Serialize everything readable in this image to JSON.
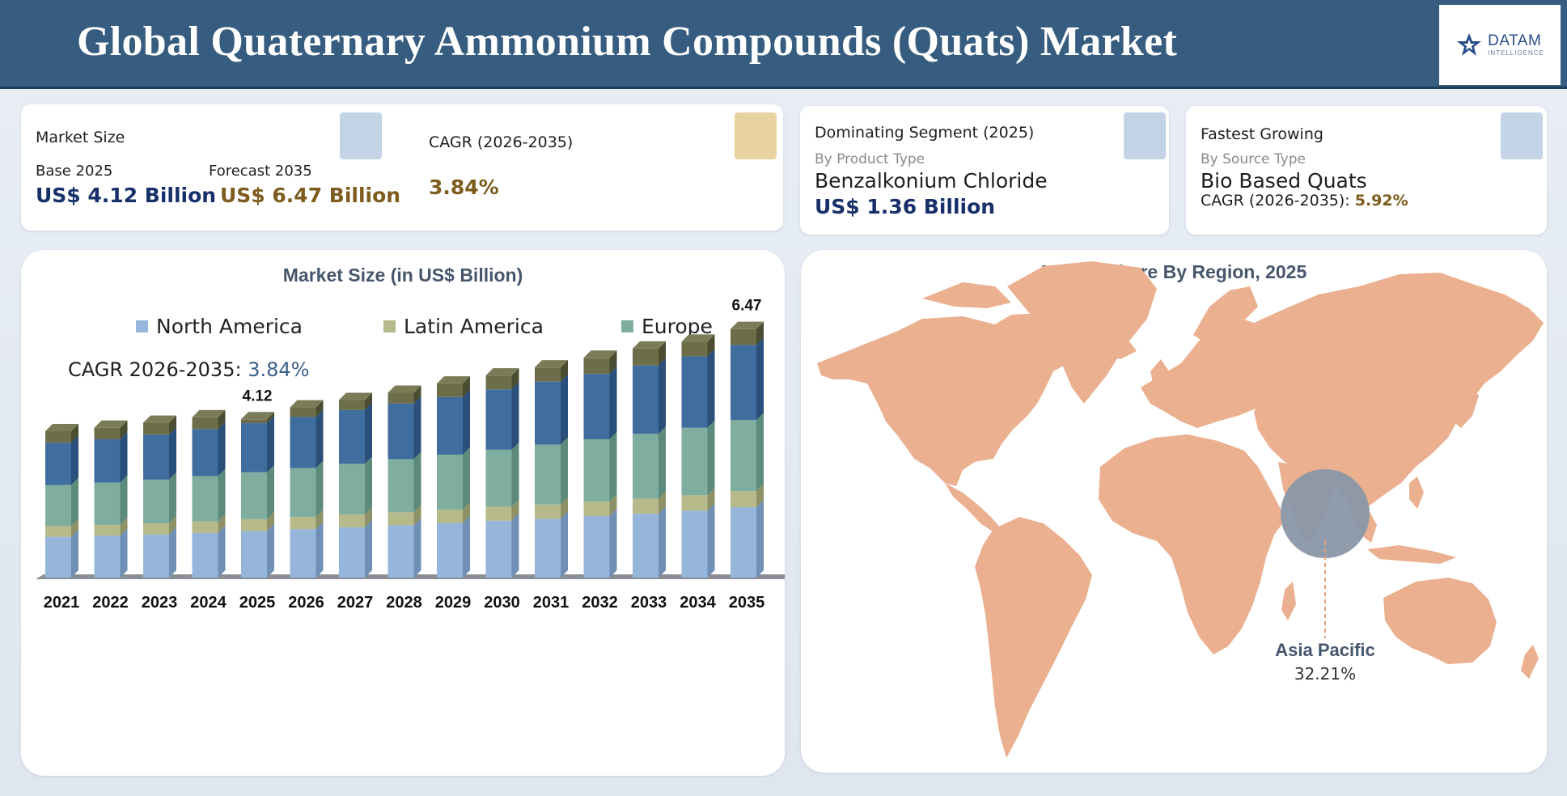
{
  "header": {
    "title": "Global Quaternary Ammonium Compounds (Quats) Market",
    "logo_main": "DATAM",
    "logo_sub": "INTELLIGENCE"
  },
  "kpi": {
    "market_size": {
      "title": "Market Size",
      "base_label": "Base 2025",
      "base_value": "US$ 4.12 Billion",
      "forecast_label": "Forecast 2035",
      "forecast_value": "US$ 6.47 Billion"
    },
    "cagr": {
      "title": "CAGR (2026-2035)",
      "value": "3.84%"
    },
    "dominating": {
      "title": "Dominating Segment  (2025)",
      "subtitle": "By Product Type",
      "segment": "Benzalkonium Chloride",
      "value": "US$ 1.36 Billion"
    },
    "fastest": {
      "title": "Fastest Growing",
      "subtitle": "By Source Type",
      "segment": "Bio Based Quats",
      "cagr_label": "CAGR (2026-2035): ",
      "cagr_value": "5.92%"
    }
  },
  "bar_panel": {
    "title": "Market Size (in US$ Billion)",
    "cagr_label": "CAGR 2026-2035: ",
    "cagr_value": "3.84%"
  },
  "map_panel": {
    "title": "Market Share By Region, 2025",
    "region": "Asia Pacific",
    "share": "32.21%"
  },
  "colors": {
    "header": "#365c7f",
    "north_america": "#95b6da",
    "latin_america": "#b6b98a",
    "europe": "#7fae9e",
    "asia_pacific": "#3f6d9e",
    "other": "#6c6e4a",
    "map_land": "#ebb08f",
    "bubble": "#8a97a8"
  },
  "chart_data": {
    "type": "bar",
    "stacked": true,
    "categories": [
      "2021",
      "2022",
      "2023",
      "2024",
      "2025",
      "2026",
      "2027",
      "2028",
      "2029",
      "2030",
      "2031",
      "2032",
      "2033",
      "2034",
      "2035"
    ],
    "series": [
      {
        "name": "North America",
        "values": [
          1.06,
          1.09,
          1.12,
          1.16,
          1.21,
          1.26,
          1.31,
          1.36,
          1.42,
          1.48,
          1.53,
          1.6,
          1.66,
          1.74,
          1.83
        ]
      },
      {
        "name": "Latin America",
        "values": [
          0.28,
          0.28,
          0.29,
          0.3,
          0.31,
          0.32,
          0.33,
          0.34,
          0.35,
          0.36,
          0.37,
          0.38,
          0.39,
          0.4,
          0.42
        ]
      },
      {
        "name": "Europe",
        "values": [
          1.07,
          1.1,
          1.14,
          1.18,
          1.22,
          1.27,
          1.32,
          1.38,
          1.43,
          1.49,
          1.56,
          1.62,
          1.69,
          1.76,
          1.85
        ]
      },
      {
        "values": [
          1.1,
          1.13,
          1.17,
          1.22,
          1.28,
          1.33,
          1.4,
          1.45,
          1.5,
          1.57,
          1.64,
          1.7,
          1.78,
          1.86,
          1.95
        ]
      },
      {
        "values": [
          0.3,
          0.3,
          0.31,
          0.31,
          0.1,
          0.25,
          0.26,
          0.28,
          0.35,
          0.36,
          0.37,
          0.42,
          0.44,
          0.38,
          0.42
        ]
      }
    ],
    "totals": [
      3.81,
      3.9,
      4.03,
      4.17,
      4.12,
      4.43,
      4.62,
      4.81,
      5.05,
      5.26,
      5.47,
      5.72,
      5.96,
      6.14,
      6.47
    ],
    "data_labels": [
      {
        "category": "2025",
        "text": "4.12"
      },
      {
        "category": "2035",
        "text": "6.47"
      }
    ],
    "ylim": [
      0,
      8
    ],
    "legend": [
      "North America",
      "Latin America",
      "Europe"
    ],
    "legend_position": "top",
    "grid": false
  }
}
